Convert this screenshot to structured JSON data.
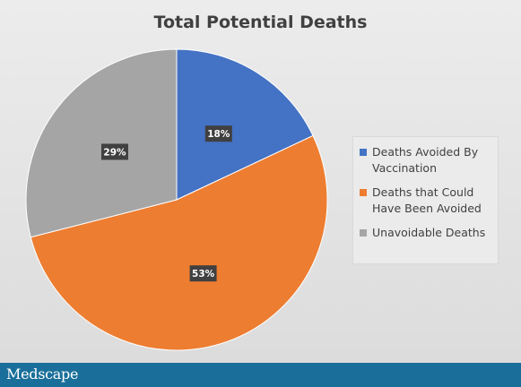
{
  "chart_data": {
    "type": "pie",
    "title": "Total Potential Deaths",
    "categories": [
      "Deaths Avoided By Vaccination",
      "Deaths that Could Have Been Avoided",
      "Unavoidable Deaths"
    ],
    "values": [
      18,
      53,
      29
    ],
    "data_labels": [
      "18%",
      "53%",
      "29%"
    ],
    "colors": [
      "#4472c4",
      "#ed7d31",
      "#a5a5a5"
    ],
    "start_angle_deg": 0,
    "direction": "clockwise",
    "legend_position": "right"
  },
  "footer": {
    "logo_text": "Medscape"
  }
}
